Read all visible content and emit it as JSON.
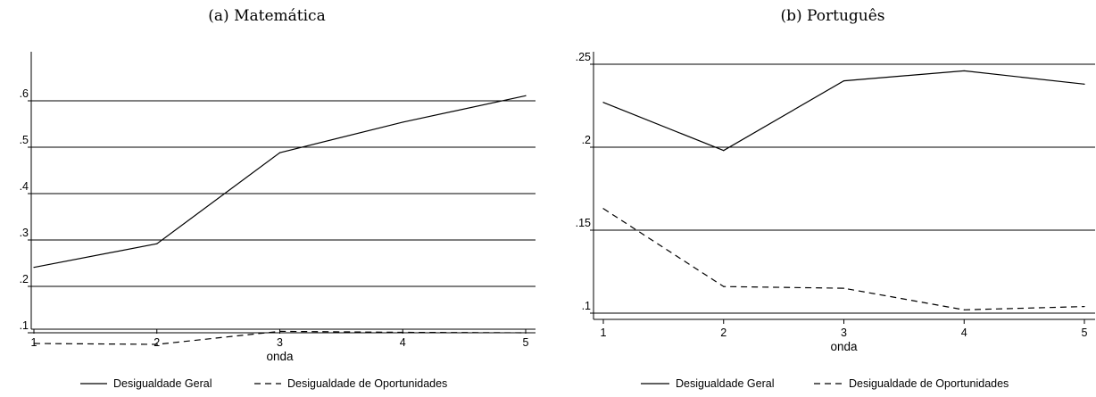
{
  "chart_data": [
    {
      "type": "line",
      "title": "(a) Matemática",
      "xlabel": "onda",
      "ylabel": "",
      "x": [
        1,
        2,
        3,
        4,
        5
      ],
      "x_ticks": [
        "1",
        "2",
        "3",
        "4",
        "5"
      ],
      "y_ticks": [
        ".1",
        ".2",
        ".3",
        ".4",
        ".5",
        ".6"
      ],
      "ylim": [
        0.075,
        0.62
      ],
      "grid": "horizontal",
      "legend_position": "bottom",
      "series": [
        {
          "name": "Desigualdade Geral",
          "style": "solid",
          "values": [
            0.241,
            0.292,
            0.488,
            0.554,
            0.611
          ]
        },
        {
          "name": "Desigualdade de Oportunidades",
          "style": "dashed",
          "values": [
            0.077,
            0.075,
            0.103,
            0.101,
            0.1
          ]
        }
      ]
    },
    {
      "type": "line",
      "title": "(b) Português",
      "xlabel": "onda",
      "ylabel": "",
      "x": [
        1,
        2,
        3,
        4,
        5
      ],
      "x_ticks": [
        "1",
        "2",
        "3",
        "4",
        "5"
      ],
      "y_ticks": [
        ".1",
        ".15",
        ".2",
        ".25"
      ],
      "ylim": [
        0.1,
        0.25
      ],
      "grid": "horizontal",
      "legend_position": "bottom",
      "series": [
        {
          "name": "Desigualdade Geral",
          "style": "solid",
          "values": [
            0.227,
            0.198,
            0.24,
            0.246,
            0.238
          ]
        },
        {
          "name": "Desigualdade de Oportunidades",
          "style": "dashed",
          "values": [
            0.163,
            0.116,
            0.115,
            0.102,
            0.104
          ]
        }
      ]
    }
  ],
  "colors": {
    "line": "#000000",
    "grid": "#000000",
    "background": "#ffffff"
  }
}
